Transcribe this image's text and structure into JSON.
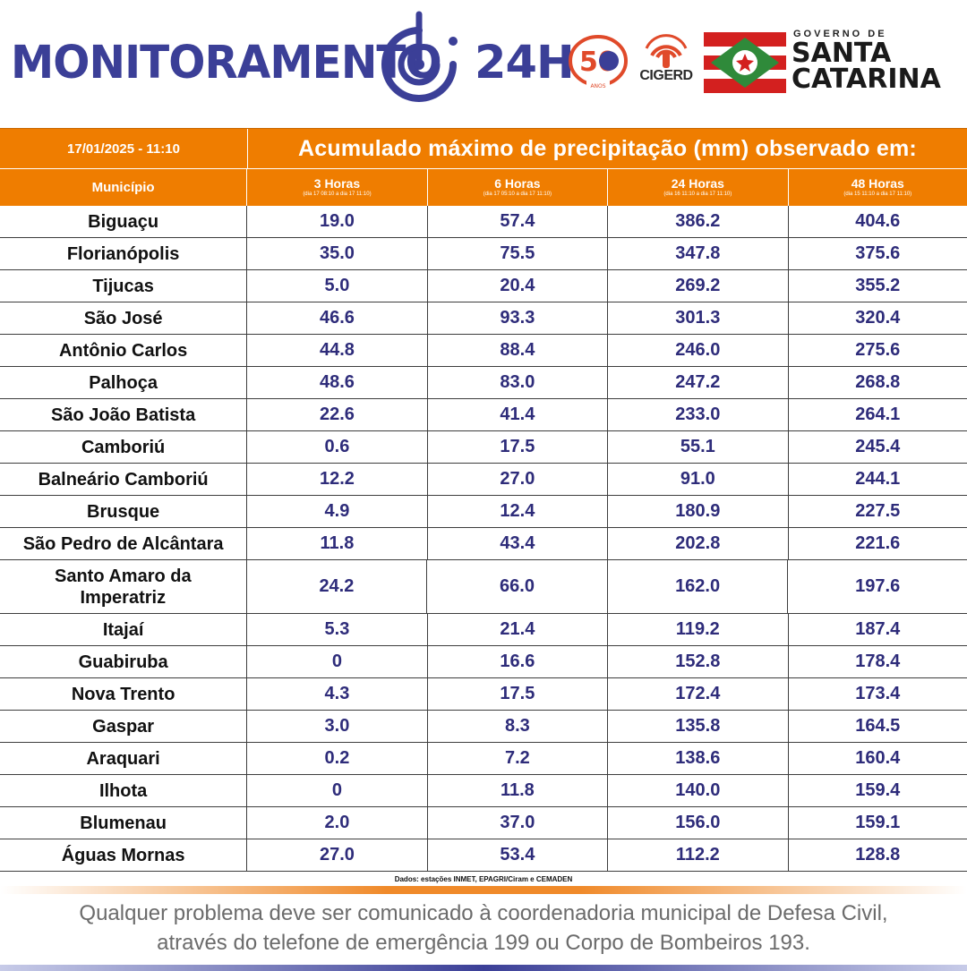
{
  "header": {
    "title": "MONITORAMENTO",
    "title_suffix": "24H",
    "logo_50_number": "50",
    "logo_50_subtext": "ANOS",
    "cigerd_label": "CIGERD",
    "gov_small": "GOVERNO DE",
    "gov_line1": "SANTA",
    "gov_line2": "CATARINA",
    "colors": {
      "brand": "#3b3f97",
      "orange": "#ef7d00",
      "values": "#2e2c7a"
    }
  },
  "table": {
    "date": "17/01/2025 - 11:10",
    "caption": "Acumulado máximo de precipitação (mm) observado em:",
    "municipio_label": "Município",
    "periods": [
      {
        "label": "3 Horas",
        "range": "(dia 17 08:10 a dia 17 11:10)"
      },
      {
        "label": "6 Horas",
        "range": "(dia 17 05:10 a dia 17 11:10)"
      },
      {
        "label": "24 Horas",
        "range": "(dia 16 11:10 a dia 17 11:10)"
      },
      {
        "label": "48 Horas",
        "range": "(dia 15 11:10 a dia 17 11:10)"
      }
    ],
    "rows": [
      {
        "municipio": "Biguaçu",
        "h3": "19.0",
        "h6": "57.4",
        "h24": "386.2",
        "h48": "404.6"
      },
      {
        "municipio": "Florianópolis",
        "h3": "35.0",
        "h6": "75.5",
        "h24": "347.8",
        "h48": "375.6"
      },
      {
        "municipio": "Tijucas",
        "h3": "5.0",
        "h6": "20.4",
        "h24": "269.2",
        "h48": "355.2"
      },
      {
        "municipio": "São José",
        "h3": "46.6",
        "h6": "93.3",
        "h24": "301.3",
        "h48": "320.4"
      },
      {
        "municipio": "Antônio Carlos",
        "h3": "44.8",
        "h6": "88.4",
        "h24": "246.0",
        "h48": "275.6"
      },
      {
        "municipio": "Palhoça",
        "h3": "48.6",
        "h6": "83.0",
        "h24": "247.2",
        "h48": "268.8"
      },
      {
        "municipio": "São João Batista",
        "h3": "22.6",
        "h6": "41.4",
        "h24": "233.0",
        "h48": "264.1"
      },
      {
        "municipio": "Camboriú",
        "h3": "0.6",
        "h6": "17.5",
        "h24": "55.1",
        "h48": "245.4"
      },
      {
        "municipio": "Balneário Camboriú",
        "h3": "12.2",
        "h6": "27.0",
        "h24": "91.0",
        "h48": "244.1"
      },
      {
        "municipio": "Brusque",
        "h3": "4.9",
        "h6": "12.4",
        "h24": "180.9",
        "h48": "227.5"
      },
      {
        "municipio": "São Pedro de Alcântara",
        "h3": "11.8",
        "h6": "43.4",
        "h24": "202.8",
        "h48": "221.6"
      },
      {
        "municipio": "Santo Amaro da Imperatriz",
        "h3": "24.2",
        "h6": "66.0",
        "h24": "162.0",
        "h48": "197.6"
      },
      {
        "municipio": "Itajaí",
        "h3": "5.3",
        "h6": "21.4",
        "h24": "119.2",
        "h48": "187.4"
      },
      {
        "municipio": "Guabiruba",
        "h3": "0",
        "h6": "16.6",
        "h24": "152.8",
        "h48": "178.4"
      },
      {
        "municipio": "Nova Trento",
        "h3": "4.3",
        "h6": "17.5",
        "h24": "172.4",
        "h48": "173.4"
      },
      {
        "municipio": "Gaspar",
        "h3": "3.0",
        "h6": "8.3",
        "h24": "135.8",
        "h48": "164.5"
      },
      {
        "municipio": "Araquari",
        "h3": "0.2",
        "h6": "7.2",
        "h24": "138.6",
        "h48": "160.4"
      },
      {
        "municipio": "Ilhota",
        "h3": "0",
        "h6": "11.8",
        "h24": "140.0",
        "h48": "159.4"
      },
      {
        "municipio": "Blumenau",
        "h3": "2.0",
        "h6": "37.0",
        "h24": "156.0",
        "h48": "159.1"
      },
      {
        "municipio": "Águas Mornas",
        "h3": "27.0",
        "h6": "53.4",
        "h24": "112.2",
        "h48": "128.8"
      }
    ],
    "source": "Dados: estações INMET, EPAGRI/Ciram e CEMADEN"
  },
  "footer": {
    "line1": "Qualquer problema deve ser comunicado à coordenadoria municipal de Defesa Civil,",
    "line2": "através do telefone de emergência 199 ou Corpo de Bombeiros 193."
  }
}
